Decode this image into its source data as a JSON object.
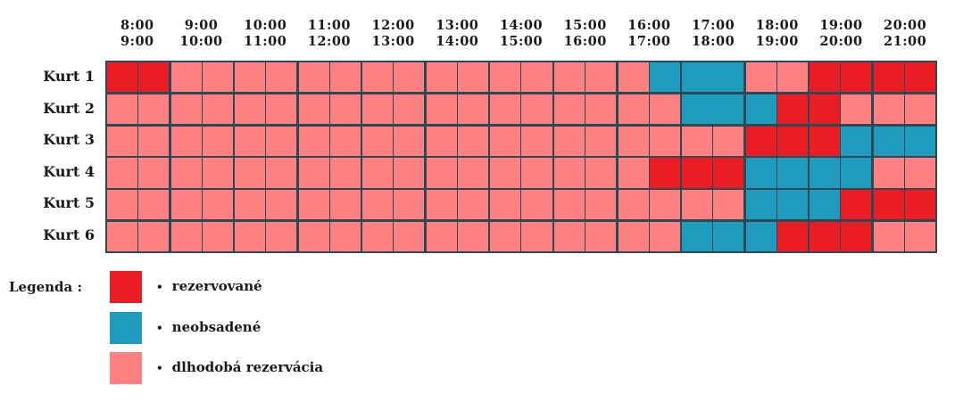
{
  "hours": [
    {
      "from": "8:00",
      "to": "9:00"
    },
    {
      "from": "9:00",
      "to": "10:00"
    },
    {
      "from": "10:00",
      "to": "11:00"
    },
    {
      "from": "11:00",
      "to": "12:00"
    },
    {
      "from": "12:00",
      "to": "13:00"
    },
    {
      "from": "13:00",
      "to": "14:00"
    },
    {
      "from": "14:00",
      "to": "15:00"
    },
    {
      "from": "15:00",
      "to": "16:00"
    },
    {
      "from": "16:00",
      "to": "17:00"
    },
    {
      "from": "17:00",
      "to": "18:00"
    },
    {
      "from": "18:00",
      "to": "19:00"
    },
    {
      "from": "19:00",
      "to": "20:00"
    },
    {
      "from": "20:00",
      "to": "21:00"
    }
  ],
  "courts": [
    {
      "label": "Kurt 1",
      "slots": [
        "r",
        "r",
        "d",
        "d",
        "d",
        "d",
        "d",
        "d",
        "d",
        "d",
        "d",
        "d",
        "d",
        "d",
        "d",
        "d",
        "d",
        "n",
        "n",
        "n",
        "d",
        "d",
        "r",
        "r",
        "r",
        "r"
      ],
      "merged": [
        9
      ]
    },
    {
      "label": "Kurt 2",
      "slots": [
        "d",
        "d",
        "d",
        "d",
        "d",
        "d",
        "d",
        "d",
        "d",
        "d",
        "d",
        "d",
        "d",
        "d",
        "d",
        "d",
        "d",
        "d",
        "n",
        "n",
        "n",
        "r",
        "r",
        "d",
        "d",
        "d"
      ],
      "merged": [
        9
      ]
    },
    {
      "label": "Kurt 3",
      "slots": [
        "d",
        "d",
        "d",
        "d",
        "d",
        "d",
        "d",
        "d",
        "d",
        "d",
        "d",
        "d",
        "d",
        "d",
        "d",
        "d",
        "d",
        "d",
        "d",
        "d",
        "r",
        "r",
        "r",
        "n",
        "n",
        "n"
      ],
      "merged": []
    },
    {
      "label": "Kurt 4",
      "slots": [
        "d",
        "d",
        "d",
        "d",
        "d",
        "d",
        "d",
        "d",
        "d",
        "d",
        "d",
        "d",
        "d",
        "d",
        "d",
        "d",
        "d",
        "r",
        "r",
        "r",
        "n",
        "n",
        "n",
        "n",
        "d",
        "d"
      ],
      "merged": []
    },
    {
      "label": "Kurt 5",
      "slots": [
        "d",
        "d",
        "d",
        "d",
        "d",
        "d",
        "d",
        "d",
        "d",
        "d",
        "d",
        "d",
        "d",
        "d",
        "d",
        "d",
        "d",
        "d",
        "d",
        "d",
        "n",
        "n",
        "n",
        "r",
        "r",
        "r"
      ],
      "merged": []
    },
    {
      "label": "Kurt 6",
      "slots": [
        "d",
        "d",
        "d",
        "d",
        "d",
        "d",
        "d",
        "d",
        "d",
        "d",
        "d",
        "d",
        "d",
        "d",
        "d",
        "d",
        "d",
        "d",
        "n",
        "n",
        "n",
        "r",
        "r",
        "r",
        "d",
        "d"
      ],
      "merged": []
    }
  ],
  "legend": {
    "title": "Legenda :",
    "bullet": "•",
    "items": [
      {
        "key": "r",
        "label": "rezervované",
        "color": "#ec1c24"
      },
      {
        "key": "n",
        "label": "neobsadené",
        "color": "#1f9bbd"
      },
      {
        "key": "d",
        "label": "dlhodobá rezervácia",
        "color": "#ff8080"
      }
    ]
  }
}
